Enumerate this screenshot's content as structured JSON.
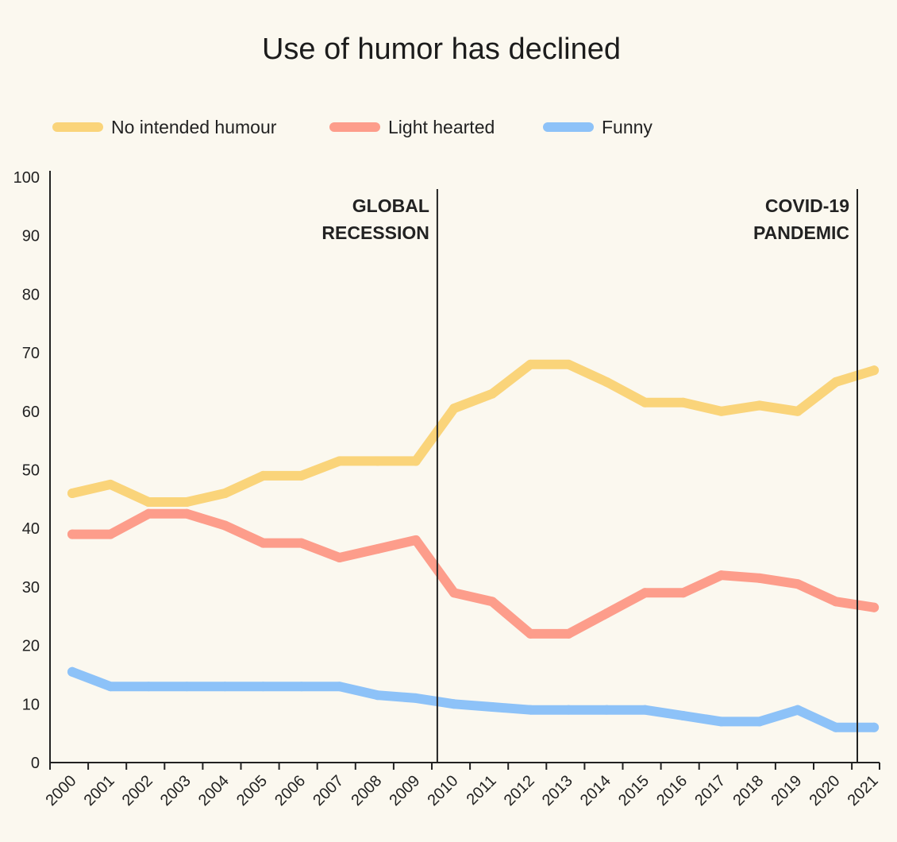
{
  "chart_data": {
    "type": "line",
    "title": "Use of humor has declined",
    "xlabel": "",
    "ylabel": "",
    "ylim": [
      0,
      100
    ],
    "yticks": [
      0,
      10,
      20,
      30,
      40,
      50,
      60,
      70,
      80,
      90,
      100
    ],
    "grid": false,
    "legend_position": "top",
    "x": [
      "2000",
      "2001",
      "2002",
      "2003",
      "2004",
      "2005",
      "2006",
      "2007",
      "2008",
      "2009",
      "2010",
      "2011",
      "2012",
      "2013",
      "2014",
      "2015",
      "2016",
      "2017",
      "2018",
      "2019",
      "2020",
      "2021"
    ],
    "series": [
      {
        "name": "No intended humour",
        "color": "#fad47a",
        "values": [
          46,
          47.5,
          44.5,
          44.5,
          46,
          49,
          49,
          51.5,
          51.5,
          51.5,
          60.5,
          63,
          68,
          68,
          65,
          61.5,
          61.5,
          60,
          61,
          60,
          65,
          67
        ]
      },
      {
        "name": "Light hearted",
        "color": "#fd9d8b",
        "values": [
          39,
          39,
          42.5,
          42.5,
          40.5,
          37.5,
          37.5,
          35,
          36.5,
          38,
          29,
          27.5,
          22,
          22,
          25.5,
          29,
          29,
          32,
          31.5,
          30.5,
          27.5,
          26.5
        ]
      },
      {
        "name": "Funny",
        "color": "#8dc2f8",
        "values": [
          15.5,
          13,
          13,
          13,
          13,
          13,
          13,
          13,
          11.5,
          11,
          10,
          9.5,
          9,
          9,
          9,
          9,
          8,
          7,
          7,
          9,
          6,
          6
        ]
      }
    ],
    "annotations": [
      {
        "at": "2009",
        "lines": [
          "GLOBAL",
          "RECESSION"
        ]
      },
      {
        "at": "2020",
        "lines": [
          "COVID-19",
          "PANDEMIC"
        ]
      }
    ]
  }
}
